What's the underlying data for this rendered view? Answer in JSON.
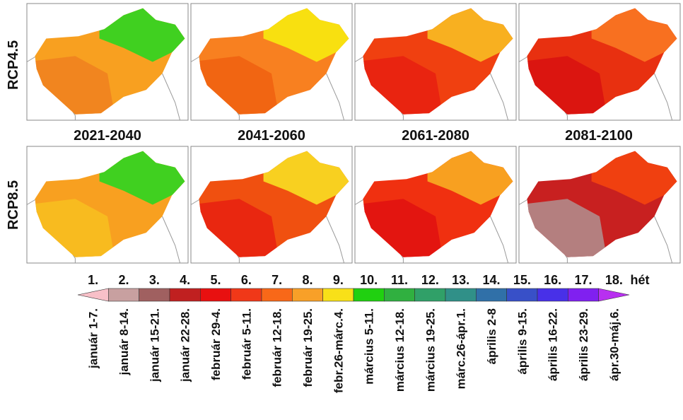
{
  "row_labels": [
    "RCP4.5",
    "RCP8.5"
  ],
  "period_labels": [
    "2021-2040",
    "2041-2060",
    "2061-2080",
    "2081-2100"
  ],
  "legend": {
    "unit": "hét",
    "items": [
      {
        "week": "1.",
        "dates": "január 1-7.",
        "color": "#f8c0c8"
      },
      {
        "week": "2.",
        "dates": "január 8-14.",
        "color": "#c8a0a0"
      },
      {
        "week": "3.",
        "dates": "január 15-21.",
        "color": "#a06060"
      },
      {
        "week": "4.",
        "dates": "január 22-28.",
        "color": "#c02020"
      },
      {
        "week": "5.",
        "dates": "február 29-4.",
        "color": "#e81010"
      },
      {
        "week": "6.",
        "dates": "február 5-11.",
        "color": "#f03818"
      },
      {
        "week": "7.",
        "dates": "február 12-18.",
        "color": "#f86818"
      },
      {
        "week": "8.",
        "dates": "február 19-25.",
        "color": "#f8a028"
      },
      {
        "week": "9.",
        "dates": "febr.26-márc.4.",
        "color": "#f8e018"
      },
      {
        "week": "10.",
        "dates": "március 5-11.",
        "color": "#20d010"
      },
      {
        "week": "11.",
        "dates": "március 12-18.",
        "color": "#30b040"
      },
      {
        "week": "12.",
        "dates": "március 19-25.",
        "color": "#30a068"
      },
      {
        "week": "13.",
        "dates": "márc.26-ápr.1.",
        "color": "#309088"
      },
      {
        "week": "14.",
        "dates": "április 2-8",
        "color": "#3070a8"
      },
      {
        "week": "15.",
        "dates": "április 9-15.",
        "color": "#3850c8"
      },
      {
        "week": "16.",
        "dates": "április 16-22.",
        "color": "#4830e8"
      },
      {
        "week": "17.",
        "dates": "április 23-29.",
        "color": "#8020f0"
      },
      {
        "week": "18.",
        "dates": "ápr.30-máj.6.",
        "color": "#b830f0"
      }
    ]
  }
}
